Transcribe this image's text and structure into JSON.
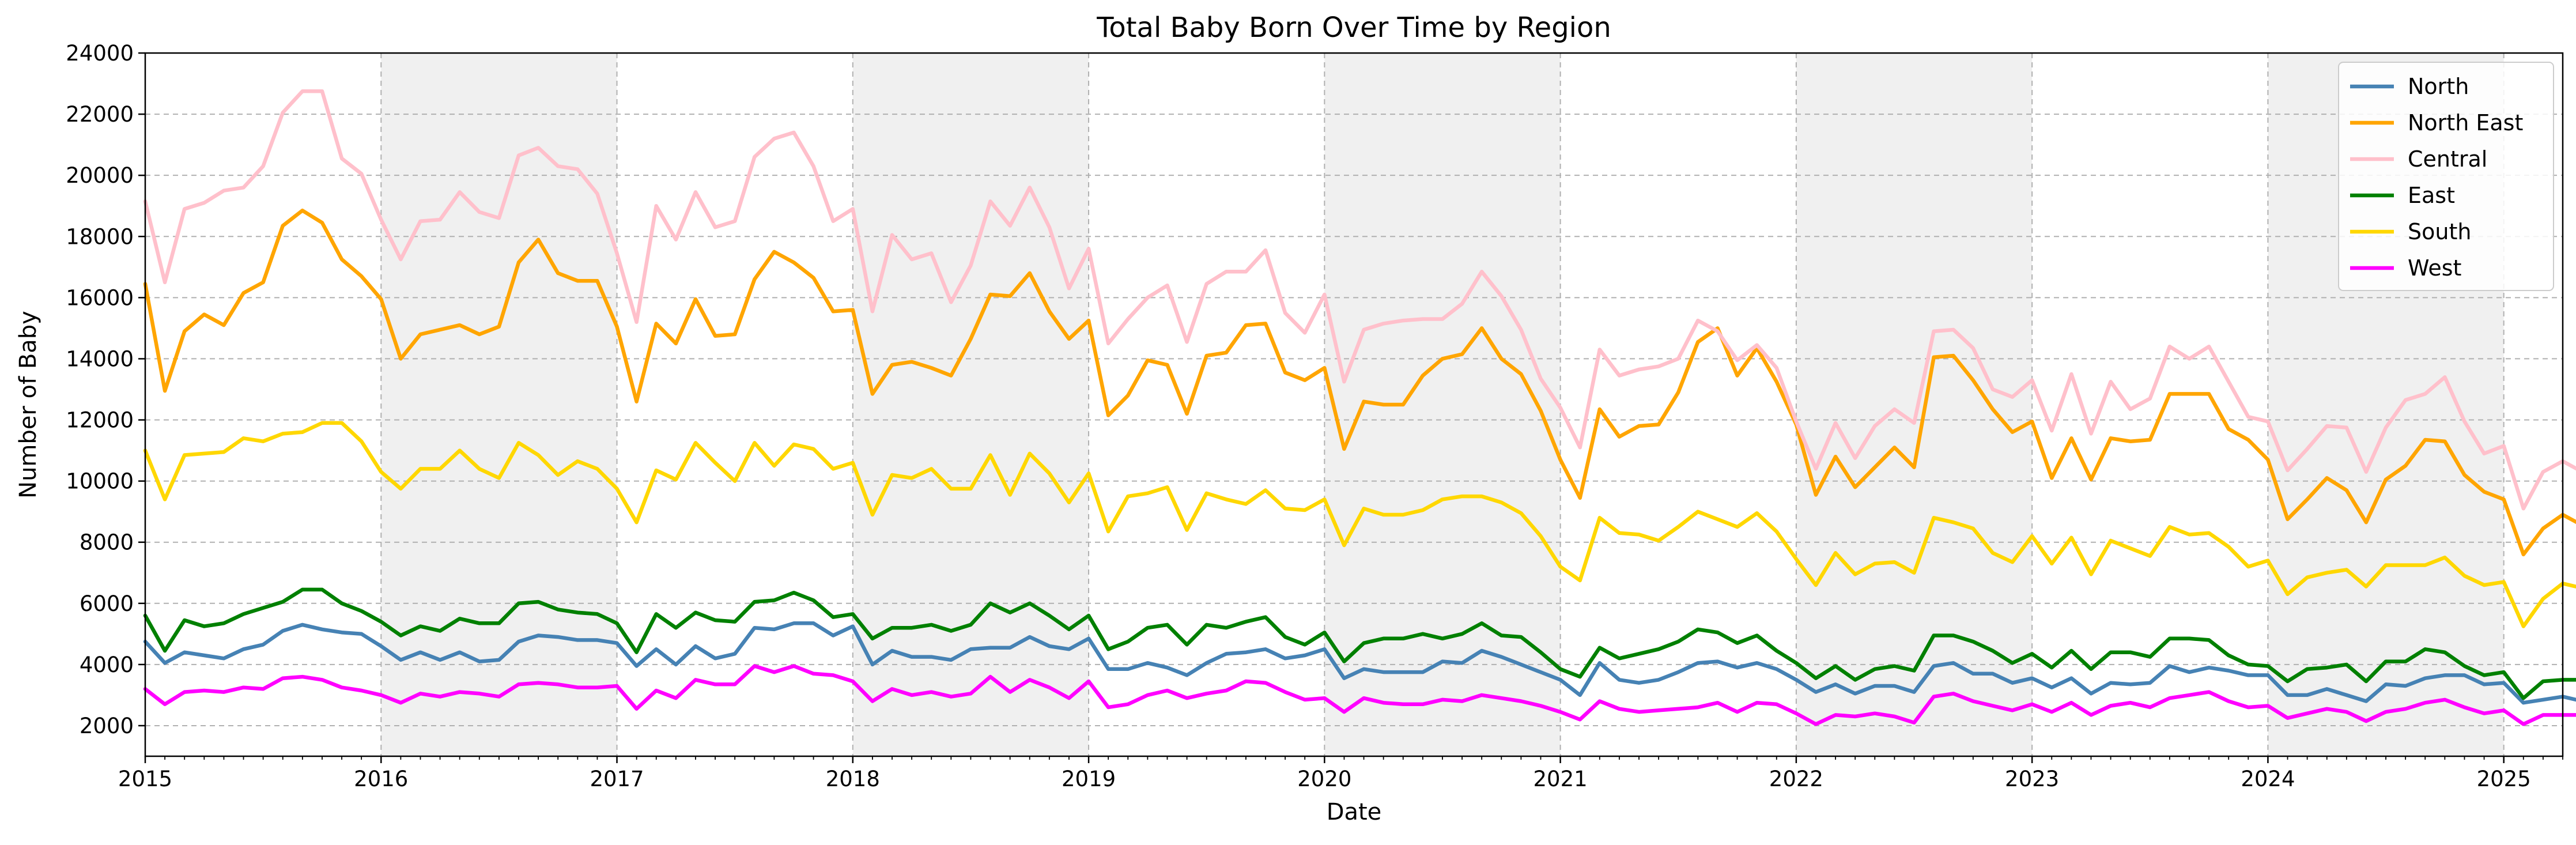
{
  "chart_data": {
    "type": "line",
    "title": "Total Baby Born Over Time by Region",
    "xlabel": "Date",
    "ylabel": "Number of Baby",
    "x_start": "2015-01",
    "x_end": "2025-04",
    "xlim": [
      "2015-01",
      "2025-04"
    ],
    "x_tick_labels": [
      "2015",
      "2016",
      "2017",
      "2018",
      "2019",
      "2020",
      "2021",
      "2022",
      "2023",
      "2024",
      "2025"
    ],
    "ylim": [
      1000,
      24000
    ],
    "y_ticks": [
      2000,
      4000,
      6000,
      8000,
      10000,
      12000,
      14000,
      16000,
      18000,
      20000,
      22000,
      24000
    ],
    "grid": true,
    "grid_style": "dashed",
    "shaded_years": [
      "2016",
      "2018",
      "2020",
      "2022",
      "2024"
    ],
    "shade_color": "#f0f0f0",
    "legend_position": "top-right",
    "series": [
      {
        "name": "North",
        "color": "#4682b4",
        "values": [
          4750,
          4050,
          4400,
          4300,
          4200,
          4500,
          4650,
          5100,
          5300,
          5150,
          5050,
          5000,
          4600,
          4150,
          4400,
          4150,
          4400,
          4100,
          4150,
          4750,
          4950,
          4900,
          4800,
          4800,
          4700,
          3950,
          4500,
          4000,
          4600,
          4200,
          4350,
          5200,
          5150,
          5350,
          5350,
          4950,
          5250,
          4000,
          4450,
          4250,
          4250,
          4150,
          4500,
          4550,
          4550,
          4900,
          4600,
          4500,
          4850,
          3850,
          3850,
          4050,
          3900,
          3650,
          4050,
          4350,
          4400,
          4500,
          4200,
          4300,
          4500,
          3550,
          3850,
          3750,
          3750,
          3750,
          4100,
          4050,
          4450,
          4250,
          4000,
          3750,
          3500,
          3000,
          4050,
          3500,
          3400,
          3500,
          3750,
          4050,
          4100,
          3900,
          4050,
          3850,
          3500,
          3100,
          3350,
          3050,
          3300,
          3300,
          3100,
          3950,
          4050,
          3700,
          3700,
          3400,
          3550,
          3250,
          3550,
          3050,
          3400,
          3350,
          3400,
          3950,
          3750,
          3900,
          3800,
          3650,
          3650,
          3000,
          3000,
          3200,
          3000,
          2800,
          3350,
          3300,
          3550,
          3650,
          3650,
          3350,
          3400,
          2750,
          2850,
          2950,
          2800
        ]
      },
      {
        "name": "North East",
        "color": "#ffa500",
        "values": [
          16450,
          12950,
          14900,
          15450,
          15100,
          16150,
          16500,
          18350,
          18850,
          18450,
          17250,
          16700,
          15950,
          14000,
          14800,
          14950,
          15100,
          14800,
          15050,
          17150,
          17900,
          16800,
          16550,
          16550,
          15050,
          12600,
          15150,
          14500,
          15950,
          14750,
          14800,
          16600,
          17500,
          17150,
          16650,
          15550,
          15600,
          12850,
          13800,
          13900,
          13700,
          13450,
          14650,
          16100,
          16050,
          16800,
          15550,
          14650,
          15250,
          12150,
          12800,
          13950,
          13800,
          12200,
          14100,
          14200,
          15100,
          15150,
          13550,
          13300,
          13700,
          11050,
          12600,
          12500,
          12500,
          13450,
          14000,
          14150,
          15000,
          14000,
          13500,
          12300,
          10700,
          9450,
          12350,
          11450,
          11800,
          11850,
          12900,
          14550,
          15000,
          13450,
          14350,
          13250,
          11850,
          9550,
          10800,
          9800,
          10450,
          11100,
          10450,
          14050,
          14100,
          13300,
          12350,
          11600,
          11950,
          10100,
          11400,
          10050,
          11400,
          11300,
          11350,
          12850,
          12850,
          12850,
          11700,
          11350,
          10700,
          8750,
          9400,
          10100,
          9700,
          8650,
          10050,
          10500,
          11350,
          11300,
          10200,
          9650,
          9400,
          7600,
          8450,
          8900,
          8550
        ]
      },
      {
        "name": "Central",
        "color": "#ffc0cb",
        "values": [
          19150,
          16500,
          18900,
          19100,
          19500,
          19600,
          20300,
          22050,
          22750,
          22750,
          20550,
          20050,
          18550,
          17250,
          18500,
          18550,
          19450,
          18800,
          18600,
          20650,
          20900,
          20300,
          20200,
          19400,
          17450,
          15200,
          19000,
          17900,
          19450,
          18300,
          18500,
          20600,
          21200,
          21400,
          20300,
          18500,
          18900,
          15550,
          18050,
          17250,
          17450,
          15850,
          17050,
          19150,
          18350,
          19600,
          18300,
          16300,
          17600,
          14500,
          15300,
          16000,
          16400,
          14550,
          16450,
          16850,
          16850,
          17550,
          15500,
          14850,
          16100,
          13250,
          14950,
          15150,
          15250,
          15300,
          15300,
          15800,
          16850,
          16050,
          14950,
          13350,
          12400,
          11100,
          14300,
          13450,
          13650,
          13750,
          14000,
          15250,
          14900,
          13950,
          14450,
          13700,
          11950,
          10400,
          11900,
          10750,
          11800,
          12350,
          11900,
          14900,
          14950,
          14350,
          13000,
          12750,
          13300,
          11650,
          13500,
          11550,
          13250,
          12350,
          12700,
          14400,
          14000,
          14400,
          13250,
          12100,
          11950,
          10350,
          11050,
          11800,
          11750,
          10300,
          11750,
          12650,
          12850,
          13400,
          11950,
          10900,
          11150,
          9100,
          10300,
          10650,
          10300
        ]
      },
      {
        "name": "East",
        "color": "#008000",
        "values": [
          5600,
          4450,
          5450,
          5250,
          5350,
          5650,
          5850,
          6050,
          6450,
          6450,
          6000,
          5750,
          5400,
          4950,
          5250,
          5100,
          5500,
          5350,
          5350,
          6000,
          6050,
          5800,
          5700,
          5650,
          5350,
          4400,
          5650,
          5200,
          5700,
          5450,
          5400,
          6050,
          6100,
          6350,
          6100,
          5550,
          5650,
          4850,
          5200,
          5200,
          5300,
          5100,
          5300,
          6000,
          5700,
          6000,
          5600,
          5150,
          5600,
          4500,
          4750,
          5200,
          5300,
          4650,
          5300,
          5200,
          5400,
          5550,
          4900,
          4650,
          5050,
          4100,
          4700,
          4850,
          4850,
          5000,
          4850,
          5000,
          5350,
          4950,
          4900,
          4400,
          3850,
          3600,
          4550,
          4200,
          4350,
          4500,
          4750,
          5150,
          5050,
          4700,
          4950,
          4450,
          4050,
          3550,
          3950,
          3500,
          3850,
          3950,
          3800,
          4950,
          4950,
          4750,
          4450,
          4050,
          4350,
          3900,
          4450,
          3850,
          4400,
          4400,
          4250,
          4850,
          4850,
          4800,
          4300,
          4000,
          3950,
          3450,
          3850,
          3900,
          4000,
          3450,
          4100,
          4100,
          4500,
          4400,
          3950,
          3650,
          3750,
          2900,
          3450,
          3500,
          3500
        ]
      },
      {
        "name": "South",
        "color": "#ffd700",
        "values": [
          11000,
          9400,
          10850,
          10900,
          10950,
          11400,
          11300,
          11550,
          11600,
          11900,
          11900,
          11300,
          10300,
          9750,
          10400,
          10400,
          11000,
          10400,
          10100,
          11250,
          10850,
          10200,
          10650,
          10400,
          9750,
          8650,
          10350,
          10050,
          11250,
          10600,
          10000,
          11250,
          10500,
          11200,
          11050,
          10400,
          10600,
          8900,
          10200,
          10100,
          10400,
          9750,
          9750,
          10850,
          9550,
          10900,
          10250,
          9300,
          10250,
          8350,
          9500,
          9600,
          9800,
          8400,
          9600,
          9400,
          9250,
          9700,
          9100,
          9050,
          9400,
          7900,
          9100,
          8900,
          8900,
          9050,
          9400,
          9500,
          9500,
          9300,
          8950,
          8200,
          7200,
          6750,
          8800,
          8300,
          8250,
          8050,
          8500,
          9000,
          8750,
          8500,
          8950,
          8350,
          7450,
          6600,
          7650,
          6950,
          7300,
          7350,
          7000,
          8800,
          8650,
          8450,
          7650,
          7350,
          8200,
          7300,
          8150,
          6950,
          8050,
          7800,
          7550,
          8500,
          8250,
          8300,
          7850,
          7200,
          7400,
          6300,
          6850,
          7000,
          7100,
          6550,
          7250,
          7250,
          7250,
          7500,
          6900,
          6600,
          6700,
          5250,
          6150,
          6650,
          6500
        ]
      },
      {
        "name": "West",
        "color": "#ff00ff",
        "values": [
          3200,
          2700,
          3100,
          3150,
          3100,
          3250,
          3200,
          3550,
          3600,
          3500,
          3250,
          3150,
          3000,
          2750,
          3050,
          2950,
          3100,
          3050,
          2950,
          3350,
          3400,
          3350,
          3250,
          3250,
          3300,
          2550,
          3150,
          2900,
          3500,
          3350,
          3350,
          3950,
          3750,
          3950,
          3700,
          3650,
          3450,
          2800,
          3200,
          3000,
          3100,
          2950,
          3050,
          3600,
          3100,
          3500,
          3250,
          2900,
          3450,
          2600,
          2700,
          3000,
          3150,
          2900,
          3050,
          3150,
          3450,
          3400,
          3100,
          2850,
          2900,
          2450,
          2900,
          2750,
          2700,
          2700,
          2850,
          2800,
          3000,
          2900,
          2800,
          2650,
          2450,
          2200,
          2800,
          2550,
          2450,
          2500,
          2550,
          2600,
          2750,
          2450,
          2750,
          2700,
          2400,
          2050,
          2350,
          2300,
          2400,
          2300,
          2100,
          2950,
          3050,
          2800,
          2650,
          2500,
          2700,
          2450,
          2750,
          2350,
          2650,
          2750,
          2600,
          2900,
          3000,
          3100,
          2800,
          2600,
          2650,
          2250,
          2400,
          2550,
          2450,
          2150,
          2450,
          2550,
          2750,
          2850,
          2600,
          2400,
          2500,
          2050,
          2350,
          2350,
          2350
        ]
      }
    ]
  }
}
